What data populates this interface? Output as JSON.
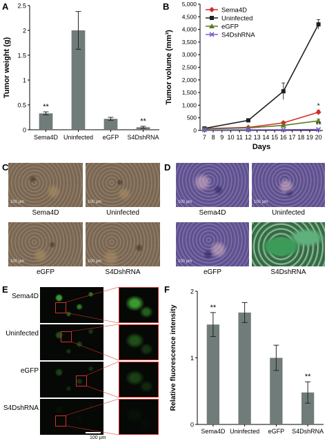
{
  "panels": {
    "A": "A",
    "B": "B",
    "C": "C",
    "D": "D",
    "E": "E",
    "F": "F"
  },
  "chart_data": [
    {
      "id": "A",
      "type": "bar",
      "ylabel": "Tumor weight (g)",
      "xlabel": "",
      "ylim": [
        0,
        2.5
      ],
      "yticks": [
        "0",
        "0.5",
        "1",
        "1.5",
        "2",
        "2.5"
      ],
      "categories": [
        "Sema4D",
        "Uninfected",
        "eGFP",
        "S4DshRNA"
      ],
      "values": [
        0.33,
        2.0,
        0.22,
        0.05
      ],
      "errors": [
        0.03,
        0.38,
        0.03,
        0.02
      ],
      "annotations": [
        "**",
        "",
        "",
        "**"
      ],
      "bar_color": "#6f7c7a"
    },
    {
      "id": "B",
      "type": "line",
      "ylabel": "Tumor volume (mm³)",
      "xlabel": "Days",
      "ylim": [
        0,
        5000
      ],
      "yticks": [
        "0",
        "500",
        "1,000",
        "1,500",
        "2,000",
        "2,500",
        "3,000",
        "3,500",
        "4,000",
        "4,500",
        "5,000"
      ],
      "xticks": [
        "7",
        "8",
        "9",
        "10",
        "11",
        "12",
        "13",
        "14",
        "15",
        "16",
        "17",
        "18",
        "19",
        "20"
      ],
      "x": [
        7,
        12,
        16,
        20
      ],
      "series": [
        {
          "name": "Sema4D",
          "color": "#d42a2a",
          "marker": "diamond",
          "values": [
            70,
            120,
            300,
            720
          ],
          "errors": [
            20,
            30,
            50,
            90
          ],
          "annotation": "*"
        },
        {
          "name": "Uninfected",
          "color": "#1f1f1f",
          "marker": "square",
          "values": [
            80,
            400,
            1550,
            4200
          ],
          "errors": [
            30,
            60,
            330,
            190
          ],
          "annotation": ""
        },
        {
          "name": "eGFP",
          "color": "#5b7d1f",
          "marker": "triangle",
          "values": [
            60,
            100,
            200,
            380
          ],
          "errors": [
            15,
            25,
            40,
            70
          ],
          "annotation": ""
        },
        {
          "name": "S4DshRNA",
          "color": "#7a5bc9",
          "marker": "x",
          "values": [
            20,
            25,
            30,
            40
          ],
          "errors": [
            5,
            5,
            5,
            8
          ],
          "annotation": "**"
        }
      ]
    },
    {
      "id": "F",
      "type": "bar",
      "ylabel": "Relative fluorescence intensity",
      "xlabel": "",
      "ylim": [
        0,
        2
      ],
      "yticks": [
        "0",
        "1",
        "2"
      ],
      "categories": [
        "Sema4D",
        "Uninfected",
        "eGFP",
        "S4DshRNA"
      ],
      "values": [
        1.5,
        1.68,
        1.0,
        0.48
      ],
      "errors": [
        0.18,
        0.15,
        0.19,
        0.16
      ],
      "annotations": [
        "**",
        "",
        "",
        "**"
      ],
      "bar_color": "#6f7c7a"
    }
  ],
  "micrographs": {
    "C": {
      "images": [
        {
          "caption": "Sema4D",
          "scale": "100 µm"
        },
        {
          "caption": "Uninfected",
          "scale": "100 µm"
        },
        {
          "caption": "eGFP",
          "scale": "100 µm"
        },
        {
          "caption": "S4DshRNA",
          "scale": "100 µm"
        }
      ]
    },
    "D": {
      "images": [
        {
          "caption": "Sema4D",
          "scale": "100 µm"
        },
        {
          "caption": "Uninfected",
          "scale": "100 µm"
        },
        {
          "caption": "eGFP",
          "scale": "100 µm"
        },
        {
          "caption": "S4DshRNA",
          "scale": ""
        }
      ]
    },
    "E": {
      "rows": [
        {
          "label": "Sema4D"
        },
        {
          "label": "Uninfected"
        },
        {
          "label": "eGFP"
        },
        {
          "label": "S4DshRNA"
        }
      ],
      "scale": "100 µm"
    }
  },
  "colors": {
    "ihc_bg": "#8a7560",
    "he_bg": "#6e5f95",
    "fluor_bg": "#050805",
    "fluor_green": "#3fa833",
    "inset_red": "#d8302b"
  }
}
